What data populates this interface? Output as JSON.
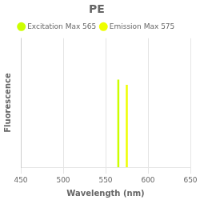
{
  "chart_data": {
    "type": "vlines",
    "title": "PE",
    "x_label": "Wavelength (nm)",
    "y_label": "Fluorescence",
    "series": [
      {
        "name": "Excitation Max 565",
        "color": "#CCFF00",
        "x": [
          565
        ],
        "values": [
          0.68
        ]
      },
      {
        "name": "Emission Max 575",
        "color": "#EEFF00",
        "x": [
          575
        ],
        "values": [
          0.64
        ]
      }
    ],
    "xlim": [
      450,
      650
    ],
    "xticks": [
      450,
      500,
      550,
      600,
      650
    ],
    "ylim": [
      0,
      1
    ],
    "grid": "x",
    "legend": "top",
    "tick_labels": "x"
  }
}
